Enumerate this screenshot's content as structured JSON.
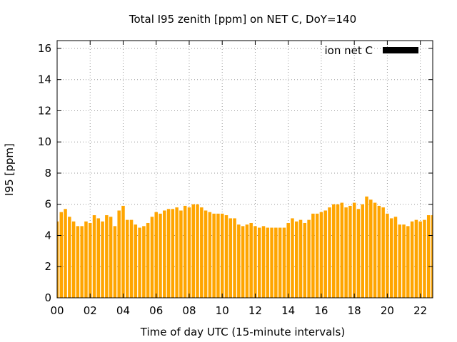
{
  "chart_data": {
    "type": "bar",
    "title": "Total I95 zenith [ppm] on NET C, DoY=140",
    "xlabel": "Time of day UTC (15-minute intervals)",
    "ylabel": "I95 [ppm]",
    "ylim": [
      0,
      16.5
    ],
    "xlim": [
      0,
      22.75
    ],
    "yticks": [
      0,
      2,
      4,
      6,
      8,
      10,
      12,
      14,
      16
    ],
    "xticks": [
      "00",
      "02",
      "04",
      "06",
      "08",
      "10",
      "12",
      "14",
      "16",
      "18",
      "20",
      "22"
    ],
    "grid": true,
    "legend_position": "top-right",
    "bar_color": "#ffa500",
    "legend_color": "#000000",
    "series": [
      {
        "name": "ion net C",
        "interval_hours": 0.25,
        "values": [
          4.9,
          5.5,
          5.7,
          5.2,
          4.9,
          4.6,
          4.6,
          4.9,
          4.8,
          5.3,
          5.1,
          4.9,
          5.3,
          5.2,
          4.6,
          5.6,
          5.9,
          5.0,
          5.0,
          4.7,
          4.5,
          4.6,
          4.8,
          5.2,
          5.5,
          5.4,
          5.6,
          5.7,
          5.7,
          5.8,
          5.6,
          5.9,
          5.8,
          6.0,
          6.0,
          5.8,
          5.6,
          5.5,
          5.4,
          5.4,
          5.4,
          5.3,
          5.1,
          5.1,
          4.7,
          4.6,
          4.7,
          4.8,
          4.6,
          4.5,
          4.6,
          4.5,
          4.5,
          4.5,
          4.5,
          4.5,
          4.8,
          5.1,
          4.9,
          5.0,
          4.8,
          5.0,
          5.4,
          5.4,
          5.5,
          5.6,
          5.8,
          6.0,
          6.0,
          6.1,
          5.8,
          5.9,
          6.1,
          5.7,
          6.0,
          6.5,
          6.3,
          6.1,
          5.9,
          5.8,
          5.4,
          5.1,
          5.2,
          4.7,
          4.7,
          4.6,
          4.9,
          5.0,
          4.9,
          5.0,
          5.3,
          5.3
        ]
      }
    ]
  }
}
